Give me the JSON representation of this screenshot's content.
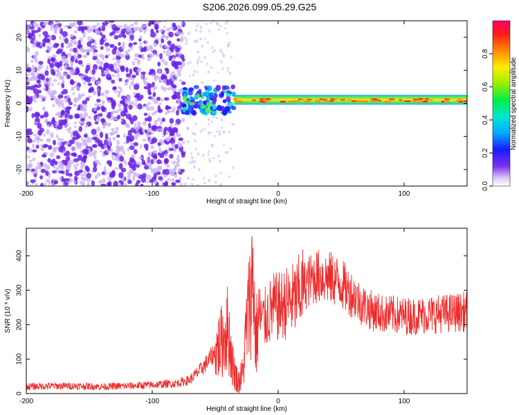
{
  "title": "S206.2026.099.05.29.G25",
  "colors": {
    "frame": "#000000",
    "snr_line": "#ee2b2b",
    "scatter_main": "#6a22e8",
    "scatter_light": "#c8b0f5"
  },
  "chart_data": [
    {
      "type": "heatmap",
      "title": "S206.2026.099.05.29.G25",
      "xlabel": "Height of straight line (km)",
      "ylabel": "Frequency (Hz)",
      "xlim": [
        -200,
        150
      ],
      "ylim": [
        -25,
        25
      ],
      "x_ticks": [
        -200,
        -100,
        0,
        100
      ],
      "x_tick_labels": [
        "-200",
        "-100",
        "0",
        "100"
      ],
      "y_ticks": [
        -20,
        -10,
        0,
        10,
        20
      ],
      "y_tick_labels": [
        "-20",
        "-10",
        "0",
        "10",
        "20"
      ],
      "colorbar": {
        "label": "Normalized spectral amplitude",
        "range": [
          0,
          1
        ],
        "ticks": [
          0.0,
          0.2,
          0.4,
          0.6,
          0.8
        ],
        "tick_labels": [
          "0.0",
          "0.2",
          "0.4",
          "0.6",
          "0.8"
        ]
      },
      "regions": [
        {
          "name": "noise",
          "x": [
            -200,
            -75
          ],
          "freq": [
            -25,
            25
          ],
          "amplitude": 0.15
        },
        {
          "name": "transition",
          "x": [
            -75,
            -35
          ],
          "freq": [
            -3,
            5
          ],
          "amplitude": 0.35
        },
        {
          "name": "signal",
          "x": [
            -35,
            150
          ],
          "freq": [
            0,
            2
          ],
          "amplitude": 0.9
        }
      ]
    },
    {
      "type": "line",
      "xlabel": "Height of straight line (km)",
      "ylabel": "SNR (10 * v/v)",
      "xlim": [
        -200,
        150
      ],
      "ylim": [
        0,
        480
      ],
      "x_ticks": [
        -200,
        -100,
        0,
        100
      ],
      "x_tick_labels": [
        "-200",
        "-100",
        "0",
        "100"
      ],
      "y_ticks": [
        0,
        100,
        200,
        300,
        400
      ],
      "y_tick_labels": [
        "0",
        "100",
        "200",
        "300",
        "400"
      ],
      "series": [
        {
          "name": "SNR",
          "x": [
            -200,
            -180,
            -160,
            -140,
            -120,
            -100,
            -80,
            -70,
            -60,
            -50,
            -45,
            -40,
            -36,
            -32,
            -28,
            -25,
            -22,
            -20,
            -18,
            -15,
            -12,
            -8,
            -4,
            0,
            5,
            10,
            14,
            18,
            22,
            26,
            30,
            35,
            40,
            45,
            50,
            55,
            60,
            65,
            70,
            75,
            80,
            85,
            90,
            100,
            110,
            120,
            130,
            140,
            150
          ],
          "y": [
            20,
            22,
            22,
            20,
            22,
            25,
            30,
            40,
            75,
            120,
            150,
            190,
            80,
            30,
            60,
            200,
            280,
            360,
            150,
            230,
            210,
            230,
            250,
            250,
            260,
            270,
            275,
            300,
            320,
            330,
            340,
            340,
            335,
            330,
            320,
            300,
            285,
            265,
            250,
            240,
            235,
            230,
            230,
            225,
            225,
            230,
            232,
            235,
            238
          ]
        }
      ]
    }
  ]
}
